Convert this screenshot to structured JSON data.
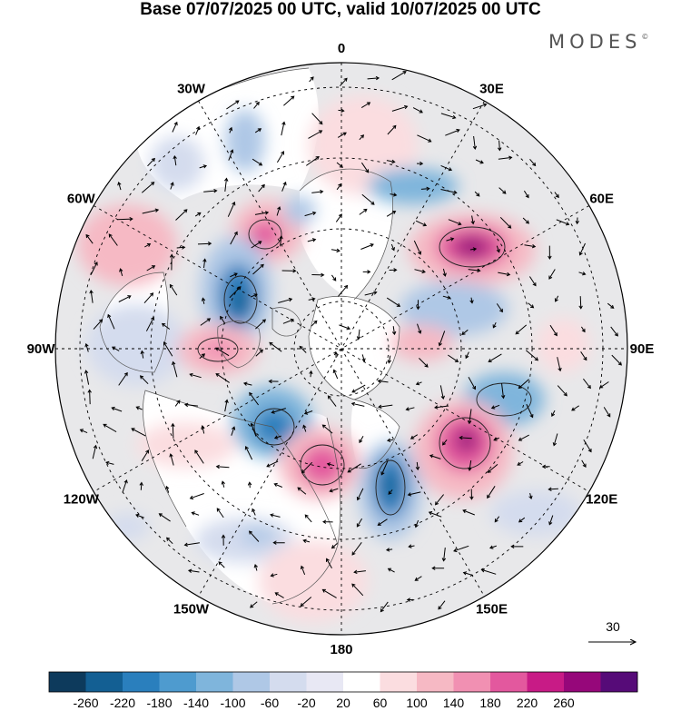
{
  "title": "Base 07/07/2025 00 UTC, valid 10/07/2025 00 UTC",
  "logo": "MODES",
  "logo_mark": "©",
  "meridian_labels": [
    {
      "text": "180",
      "lon": 180
    },
    {
      "text": "150E",
      "lon": 150
    },
    {
      "text": "120E",
      "lon": 120
    },
    {
      "text": "90E",
      "lon": 90
    },
    {
      "text": "60E",
      "lon": 60
    },
    {
      "text": "30E",
      "lon": 30
    },
    {
      "text": "0",
      "lon": 0
    },
    {
      "text": "30W",
      "lon": -30
    },
    {
      "text": "60W",
      "lon": -60
    },
    {
      "text": "90W",
      "lon": -90
    },
    {
      "text": "120W",
      "lon": -120
    },
    {
      "text": "150W",
      "lon": -150
    }
  ],
  "reference_vector": {
    "label": "30"
  },
  "colorbar": {
    "colors": [
      "#0d3a5c",
      "#135f93",
      "#2a7fbd",
      "#4e9bcf",
      "#7fb5dc",
      "#afc8e6",
      "#d4dcee",
      "#e8e8f4",
      "#ffffff",
      "#fbdde0",
      "#f6b9c4",
      "#f190b2",
      "#e3589e",
      "#c81b86",
      "#96077a",
      "#560b78"
    ],
    "ticks": [
      "-260",
      "-220",
      "-180",
      "-140",
      "-100",
      "-60",
      "-20",
      "20",
      "60",
      "100",
      "140",
      "180",
      "220",
      "260"
    ]
  }
}
